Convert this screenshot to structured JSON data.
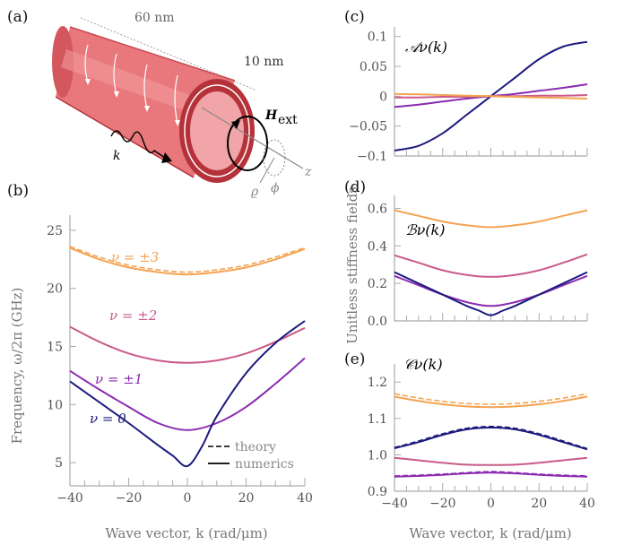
{
  "panel_labels": {
    "a": "(a)",
    "b": "(b)",
    "c": "(c)",
    "d": "(d)",
    "e": "(e)"
  },
  "schematic": {
    "dim_length": "60 nm",
    "dim_thickness": "10 nm",
    "field_label": "H",
    "field_subscript": "ext",
    "k_label": "k",
    "axis_rho": "ϱ",
    "axis_phi": "ϕ",
    "axis_z": "z"
  },
  "colors": {
    "nu0": "#1c1a7e",
    "nu1": "#8a2bb0",
    "nu2": "#c95a8a",
    "nu3": "#f4a352",
    "tube_fill": "#e8787c",
    "tube_dark": "#b5323a"
  },
  "shared_xlabel": "Wave vector, k (rad/μm)",
  "shared_ylabel_right": "Unitless stiffness fields",
  "chart_data": [
    {
      "panel": "b",
      "type": "line",
      "xlabel": "Wave vector, k (rad/μm)",
      "ylabel": "Frequency, ω/2π (GHz)",
      "xlim": [
        -40,
        40
      ],
      "ylim": [
        3,
        26
      ],
      "xticks": [
        -40,
        -20,
        0,
        20,
        40
      ],
      "yticks": [
        5,
        10,
        15,
        20,
        25
      ],
      "series": [
        {
          "name": "ν = ±3",
          "color": "#f4a352",
          "x": [
            -40,
            -30,
            -20,
            -10,
            0,
            10,
            20,
            30,
            40
          ],
          "y": [
            23.5,
            22.5,
            21.8,
            21.4,
            21.2,
            21.4,
            21.8,
            22.5,
            23.4
          ],
          "y_theory": [
            23.6,
            22.7,
            22.0,
            21.6,
            21.4,
            21.6,
            22.0,
            22.7,
            23.5
          ]
        },
        {
          "name": "ν = ±2",
          "color": "#c95a8a",
          "x": [
            -40,
            -30,
            -20,
            -10,
            0,
            10,
            20,
            30,
            40
          ],
          "y": [
            16.7,
            15.4,
            14.4,
            13.8,
            13.6,
            13.8,
            14.4,
            15.4,
            16.6
          ]
        },
        {
          "name": "ν = ±1",
          "color": "#8a2bb0",
          "x": [
            -40,
            -30,
            -20,
            -10,
            0,
            10,
            20,
            30,
            40
          ],
          "y": [
            12.9,
            11.3,
            9.8,
            8.4,
            7.8,
            8.4,
            9.8,
            11.8,
            14.0
          ]
        },
        {
          "name": "ν = 0",
          "color": "#1c1a7e",
          "x": [
            -40,
            -30,
            -20,
            -10,
            -5,
            0,
            5,
            10,
            20,
            30,
            40
          ],
          "y": [
            12.0,
            10.2,
            8.4,
            6.5,
            5.6,
            4.7,
            6.4,
            9.0,
            12.7,
            15.3,
            17.2
          ]
        }
      ],
      "annotations": [
        "ν = ±3",
        "ν = ±2",
        "ν = ±1",
        "ν = 0"
      ],
      "legend": {
        "placement": "bottom-right",
        "entries": [
          "theory",
          "numerics"
        ]
      }
    },
    {
      "panel": "c",
      "type": "line",
      "title": "𝒜ν(k)",
      "xlim": [
        -40,
        40
      ],
      "ylim": [
        -0.1,
        0.11
      ],
      "yticks": [
        -0.1,
        -0.05,
        0,
        0.05,
        0.1
      ],
      "ytick_labels": [
        "−0.1",
        "−0.05",
        "0",
        "0.05",
        "0.1"
      ],
      "series": [
        {
          "name": "ν=0",
          "color": "#1c1a7e",
          "x": [
            -40,
            -30,
            -20,
            -10,
            0,
            10,
            20,
            30,
            40
          ],
          "y": [
            -0.091,
            -0.083,
            -0.062,
            -0.031,
            0.0,
            0.031,
            0.062,
            0.083,
            0.091
          ]
        },
        {
          "name": "ν=±1",
          "color": "#8a2bb0",
          "x": [
            -40,
            -30,
            -20,
            -10,
            0,
            10,
            20,
            30,
            40
          ],
          "y": [
            -0.018,
            -0.014,
            -0.009,
            -0.004,
            0.0,
            0.004,
            0.009,
            0.014,
            0.02
          ]
        },
        {
          "name": "ν=±2",
          "color": "#c95a8a",
          "x": [
            -40,
            -30,
            -20,
            -10,
            0,
            10,
            20,
            30,
            40
          ],
          "y": [
            -0.002,
            -0.002,
            -0.001,
            -0.001,
            0.0,
            0.0,
            0.001,
            0.001,
            0.002
          ]
        },
        {
          "name": "ν=±3",
          "color": "#f4a352",
          "x": [
            -40,
            -30,
            -20,
            -10,
            0,
            10,
            20,
            30,
            40
          ],
          "y": [
            0.004,
            0.003,
            0.002,
            0.001,
            0.0,
            -0.001,
            -0.002,
            -0.003,
            -0.004
          ]
        }
      ]
    },
    {
      "panel": "d",
      "type": "line",
      "title": "ℬν(k)",
      "xlim": [
        -40,
        40
      ],
      "ylim": [
        0,
        0.65
      ],
      "yticks": [
        0.0,
        0.2,
        0.4,
        0.6
      ],
      "ytick_labels": [
        "0.0",
        "0.2",
        "0.4",
        "0.6"
      ],
      "series": [
        {
          "name": "ν=±3",
          "color": "#f4a352",
          "x": [
            -40,
            -30,
            -20,
            -10,
            0,
            10,
            20,
            30,
            40
          ],
          "y": [
            0.59,
            0.56,
            0.53,
            0.51,
            0.5,
            0.51,
            0.53,
            0.56,
            0.59
          ]
        },
        {
          "name": "ν=±2",
          "color": "#c95a8a",
          "x": [
            -40,
            -30,
            -20,
            -10,
            0,
            10,
            20,
            30,
            40
          ],
          "y": [
            0.35,
            0.31,
            0.27,
            0.245,
            0.235,
            0.245,
            0.27,
            0.31,
            0.355
          ]
        },
        {
          "name": "ν=±1",
          "color": "#8a2bb0",
          "x": [
            -40,
            -30,
            -20,
            -10,
            0,
            10,
            20,
            30,
            40
          ],
          "y": [
            0.24,
            0.19,
            0.14,
            0.1,
            0.08,
            0.1,
            0.14,
            0.19,
            0.24
          ]
        },
        {
          "name": "ν=0",
          "color": "#1c1a7e",
          "x": [
            -40,
            -30,
            -20,
            -10,
            -5,
            0,
            5,
            10,
            20,
            30,
            40
          ],
          "y": [
            0.26,
            0.2,
            0.14,
            0.08,
            0.055,
            0.03,
            0.055,
            0.08,
            0.14,
            0.2,
            0.26
          ]
        }
      ]
    },
    {
      "panel": "e",
      "type": "line",
      "title": "𝒞ν(k)",
      "xlabel": "Wave vector, k (rad/μm)",
      "xlim": [
        -40,
        40
      ],
      "ylim": [
        0.9,
        1.24
      ],
      "xticks": [
        -40,
        -20,
        0,
        20,
        40
      ],
      "yticks": [
        0.9,
        1.0,
        1.1,
        1.2
      ],
      "ytick_labels": [
        "0.9",
        "1.0",
        "1.1",
        "1.2"
      ],
      "series": [
        {
          "name": "ν=±3",
          "color": "#f4a352",
          "x": [
            -40,
            -30,
            -20,
            -10,
            0,
            10,
            20,
            30,
            40
          ],
          "y": [
            1.16,
            1.148,
            1.139,
            1.133,
            1.131,
            1.133,
            1.139,
            1.148,
            1.16
          ],
          "y_theory": [
            1.168,
            1.156,
            1.147,
            1.141,
            1.139,
            1.141,
            1.147,
            1.156,
            1.168
          ]
        },
        {
          "name": "ν=0",
          "color": "#1c1a7e",
          "x": [
            -40,
            -30,
            -20,
            -10,
            0,
            10,
            20,
            30,
            40
          ],
          "y": [
            1.018,
            1.035,
            1.055,
            1.07,
            1.075,
            1.07,
            1.055,
            1.035,
            1.015
          ],
          "y_theory": [
            1.02,
            1.038,
            1.058,
            1.073,
            1.078,
            1.073,
            1.058,
            1.038,
            1.017
          ]
        },
        {
          "name": "ν=±2",
          "color": "#c95a8a",
          "x": [
            -40,
            -30,
            -20,
            -10,
            0,
            10,
            20,
            30,
            40
          ],
          "y": [
            0.992,
            0.985,
            0.978,
            0.973,
            0.972,
            0.973,
            0.978,
            0.985,
            0.992
          ]
        },
        {
          "name": "ν=±1",
          "color": "#8a2bb0",
          "x": [
            -40,
            -30,
            -20,
            -10,
            0,
            10,
            20,
            30,
            40
          ],
          "y": [
            0.94,
            0.942,
            0.945,
            0.949,
            0.951,
            0.949,
            0.945,
            0.942,
            0.94
          ],
          "y_theory": [
            0.942,
            0.944,
            0.947,
            0.951,
            0.954,
            0.951,
            0.947,
            0.944,
            0.942
          ]
        }
      ]
    }
  ]
}
